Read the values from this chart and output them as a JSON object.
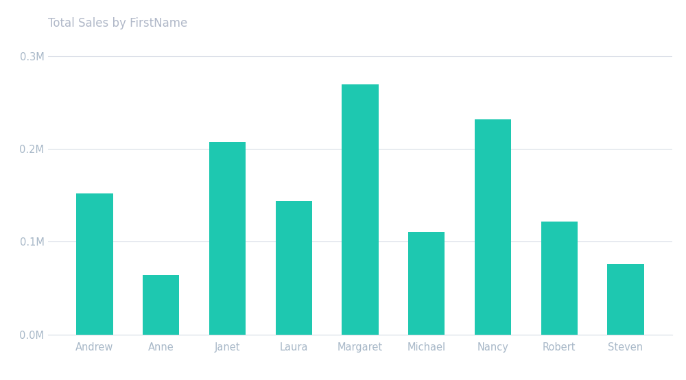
{
  "title": "Total Sales by FirstName",
  "categories": [
    "Andrew",
    "Anne",
    "Janet",
    "Laura",
    "Margaret",
    "Michael",
    "Nancy",
    "Robert",
    "Steven"
  ],
  "values": [
    152000,
    64000,
    208000,
    144000,
    270000,
    111000,
    232000,
    122000,
    76000
  ],
  "bar_color": "#1EC8B0",
  "title_color": "#b0b8c8",
  "axis_label_color": "#a8b8c8",
  "grid_color": "#d8dde6",
  "background_color": "#ffffff",
  "ylim": [
    0,
    320000
  ],
  "yticks": [
    0,
    100000,
    200000,
    300000
  ],
  "ytick_labels": [
    "0.0M",
    "0.1M",
    "0.2M",
    "0.3M"
  ],
  "title_fontsize": 12,
  "tick_fontsize": 10.5,
  "bar_width": 0.55
}
